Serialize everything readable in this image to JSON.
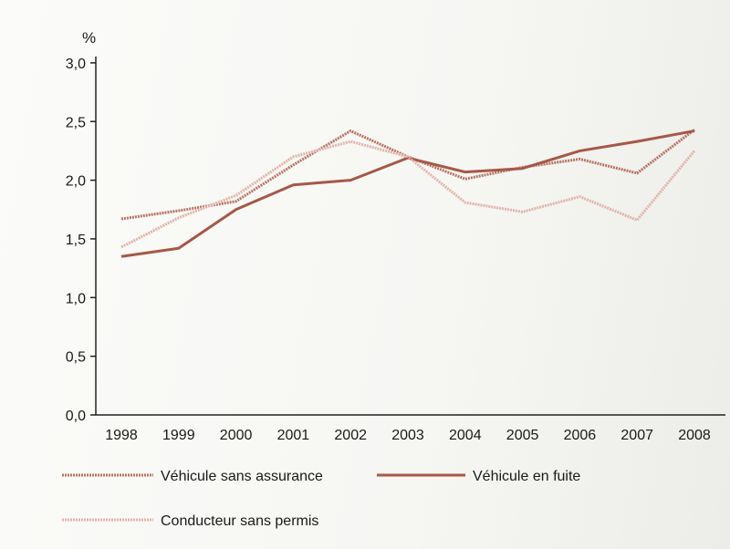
{
  "chart_data": {
    "type": "line",
    "title": "",
    "ylabel": "%",
    "xlabel": "",
    "ylim": [
      0,
      3.0
    ],
    "yticks": [
      "0,0",
      "0,5",
      "1,0",
      "1,5",
      "2,0",
      "2,5",
      "3,0"
    ],
    "ytick_values": [
      0,
      0.5,
      1.0,
      1.5,
      2.0,
      2.5,
      3.0
    ],
    "categories": [
      "1998",
      "1999",
      "2000",
      "2001",
      "2002",
      "2003",
      "2004",
      "2005",
      "2006",
      "2007",
      "2008"
    ],
    "grid": false,
    "legend_position": "bottom",
    "series": [
      {
        "name": "Véhicule sans assurance",
        "color": "#b97464",
        "style": "textured",
        "values": [
          1.67,
          1.74,
          1.82,
          2.13,
          2.42,
          2.2,
          2.01,
          2.11,
          2.18,
          2.06,
          2.43
        ]
      },
      {
        "name": "Véhicule en fuite",
        "color": "#a65847",
        "style": "solid",
        "values": [
          1.35,
          1.42,
          1.75,
          1.96,
          2.0,
          2.19,
          2.07,
          2.1,
          2.25,
          2.33,
          2.42
        ]
      },
      {
        "name": "Conducteur sans permis",
        "color": "#e3b3aa",
        "style": "textured",
        "values": [
          1.43,
          1.68,
          1.87,
          2.2,
          2.33,
          2.2,
          1.81,
          1.73,
          1.86,
          1.66,
          2.25
        ]
      }
    ]
  }
}
